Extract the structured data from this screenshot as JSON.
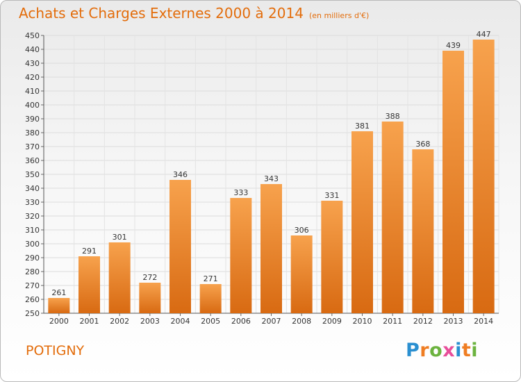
{
  "chart_data": {
    "type": "bar",
    "title": "Achats et Charges Externes 2000 à 2014",
    "subtitle": "(en milliers d'€)",
    "categories": [
      "2000",
      "2001",
      "2002",
      "2003",
      "2004",
      "2005",
      "2006",
      "2007",
      "2008",
      "2009",
      "2010",
      "2011",
      "2012",
      "2013",
      "2014"
    ],
    "values": [
      261,
      291,
      301,
      272,
      346,
      271,
      333,
      343,
      306,
      331,
      381,
      388,
      368,
      439,
      447
    ],
    "ylim": [
      250,
      450
    ],
    "yticks": [
      250,
      260,
      270,
      280,
      290,
      300,
      310,
      320,
      330,
      340,
      350,
      360,
      370,
      380,
      390,
      400,
      410,
      420,
      430,
      440,
      450
    ],
    "grid": true,
    "bar_color": "#f08c2e"
  },
  "place_name": "POTIGNY",
  "logo": {
    "letters": [
      "P",
      "r",
      "o",
      "x",
      "i",
      "t",
      "i"
    ],
    "colors": [
      "#2a8fd0",
      "#ef7d22",
      "#6cb33f",
      "#e84e9a",
      "#2a8fd0",
      "#ef7d22",
      "#6cb33f"
    ]
  }
}
